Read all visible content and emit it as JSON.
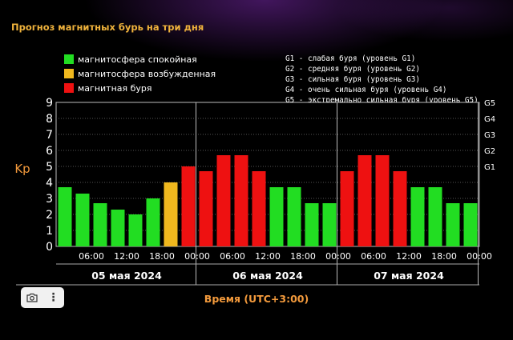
{
  "header": {
    "title": "Прогноз магнитных бурь на три дня"
  },
  "legend": [
    {
      "label": "магнитосфера спокойная",
      "color": "#22dd22"
    },
    {
      "label": "магнитосфера возбужденная",
      "color": "#f0b81e"
    },
    {
      "label": "магнитная буря",
      "color": "#ee1111"
    }
  ],
  "g_levels": [
    "G1 - слабая буря (уровень G1)",
    "G2 - средняя буря (уровень G2)",
    "G3 - сильная буря (уровень G3)",
    "G4 - очень сильная буря (уровень G4)",
    "G5 - экстремально сильная буря (уровень G5)"
  ],
  "chart_data": {
    "type": "bar",
    "ylabel": "Kp",
    "xlabel": "Время (UTC+3:00)",
    "ylim": [
      0,
      9
    ],
    "yticks": [
      "0",
      "1",
      "2",
      "3",
      "4",
      "5",
      "6",
      "7",
      "8",
      "9"
    ],
    "right_ticks": [
      {
        "label": "G1",
        "value": 5
      },
      {
        "label": "G2",
        "value": 6
      },
      {
        "label": "G3",
        "value": 7
      },
      {
        "label": "G4",
        "value": 8
      },
      {
        "label": "G5",
        "value": 9
      }
    ],
    "xticks": [
      "06:00",
      "12:00",
      "18:00",
      "00:00",
      "06:00",
      "12:00",
      "18:00",
      "00:00",
      "06:00",
      "12:00",
      "18:00",
      "00:00"
    ],
    "days": [
      "05 мая 2024",
      "06 мая 2024",
      "07 мая 2024"
    ],
    "bars_per_day": 8,
    "values": [
      3.7,
      3.3,
      2.7,
      2.3,
      2.0,
      3.0,
      4.0,
      5.0,
      4.7,
      5.7,
      5.7,
      4.7,
      3.7,
      3.7,
      2.7,
      2.7,
      4.7,
      5.7,
      5.7,
      4.7,
      3.7,
      3.7,
      2.7,
      2.7
    ],
    "colors": [
      "#22dd22",
      "#f0b81e",
      "#ee1111"
    ],
    "grid": true
  },
  "toolbar": {
    "camera_icon": "camera-icon",
    "more_icon": "more-vertical-icon",
    "more_glyph": "⋮"
  }
}
